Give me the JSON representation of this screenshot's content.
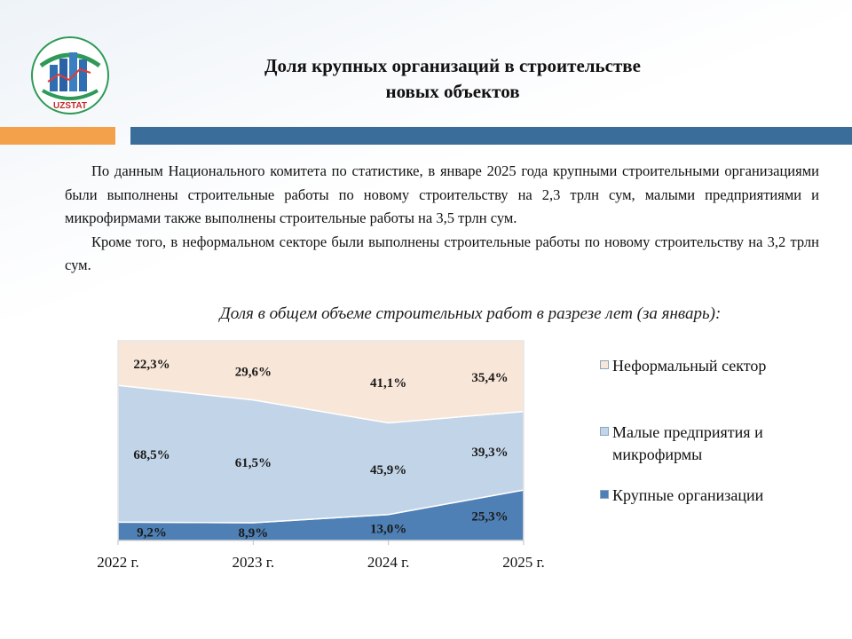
{
  "header": {
    "logo_text": "UZSTAT",
    "title_line1": "Доля крупных организаций в строительстве",
    "title_line2": "новых объектов"
  },
  "intro": {
    "paragraph1": "По данным Национального комитета по статистике, в январе 2025 года крупными строительными организациями были выполнены строительные работы по новому строительству на 2,3 трлн сум, малыми предприятиями и микрофирмами также выполнены строительные работы на 3,5 трлн сум.",
    "paragraph2": "Кроме того, в неформальном секторе были выполнены строительные работы по новому строительству на 3,2 трлн сум."
  },
  "colors": {
    "accent_orange": "#f3a24b",
    "accent_blue": "#3b6d9a",
    "large": "#4e80b5",
    "small": "#c2d4e8",
    "informal": "#f8e6d8"
  },
  "chart_data": {
    "type": "area",
    "stacked": true,
    "title": "Доля в общем объеме строительных работ в разрезе лет (за январь):",
    "categories": [
      "2022 г.",
      "2023 г.",
      "2024 г.",
      "2025 г."
    ],
    "ylim": [
      0,
      100
    ],
    "grid": false,
    "legend_position": "right",
    "series": [
      {
        "name": "Крупные организации",
        "values": [
          9.2,
          8.9,
          13.0,
          25.3
        ],
        "labels": [
          "9,2%",
          "8,9%",
          "13,0%",
          "25,3%"
        ],
        "color": "#4e80b5"
      },
      {
        "name": "Малые предприятия и микрофирмы",
        "values": [
          68.5,
          61.5,
          45.9,
          39.3
        ],
        "labels": [
          "68,5%",
          "61,5%",
          "45,9%",
          "39,3%"
        ],
        "color": "#c2d4e8"
      },
      {
        "name": "Неформальный сектор",
        "values": [
          22.3,
          29.6,
          41.1,
          35.4
        ],
        "labels": [
          "22,3%",
          "29,6%",
          "41,1%",
          "35,4%"
        ],
        "color": "#f8e6d8"
      }
    ]
  }
}
